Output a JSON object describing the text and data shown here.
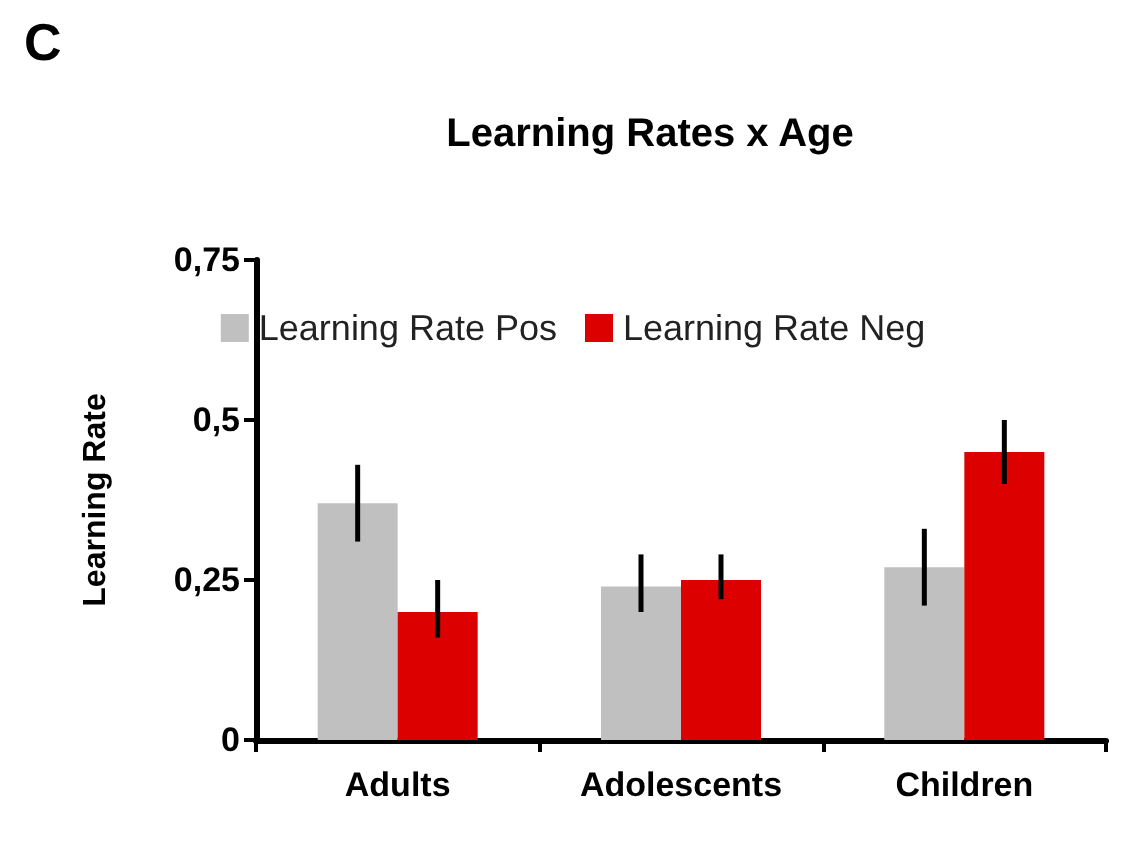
{
  "chart_data": {
    "type": "bar",
    "title": "Learning Rates x Age",
    "ylabel": "Learning Rate",
    "annotations": [
      "C"
    ],
    "categories": [
      "Adults",
      "Adolescents",
      "Children"
    ],
    "series": [
      {
        "name": "Learning Rate Pos",
        "color": "#c0c0c0",
        "values": [
          0.37,
          0.24,
          0.27
        ],
        "errors": [
          [
            0.31,
            0.43
          ],
          [
            0.2,
            0.29
          ],
          [
            0.21,
            0.33
          ]
        ]
      },
      {
        "name": "Learning Rate Neg",
        "color": "#dd0000",
        "values": [
          0.2,
          0.25,
          0.45
        ],
        "errors": [
          [
            0.16,
            0.25
          ],
          [
            0.22,
            0.29
          ],
          [
            0.4,
            0.5
          ]
        ]
      }
    ],
    "ylim": [
      0,
      0.75
    ],
    "yticks": [
      0,
      {
        "value": 0.25,
        "label": "0,25"
      },
      {
        "value": 0.5,
        "label": "0,5"
      },
      {
        "value": 0.75,
        "label": "0,75"
      }
    ],
    "legend": "top",
    "grid": false
  }
}
